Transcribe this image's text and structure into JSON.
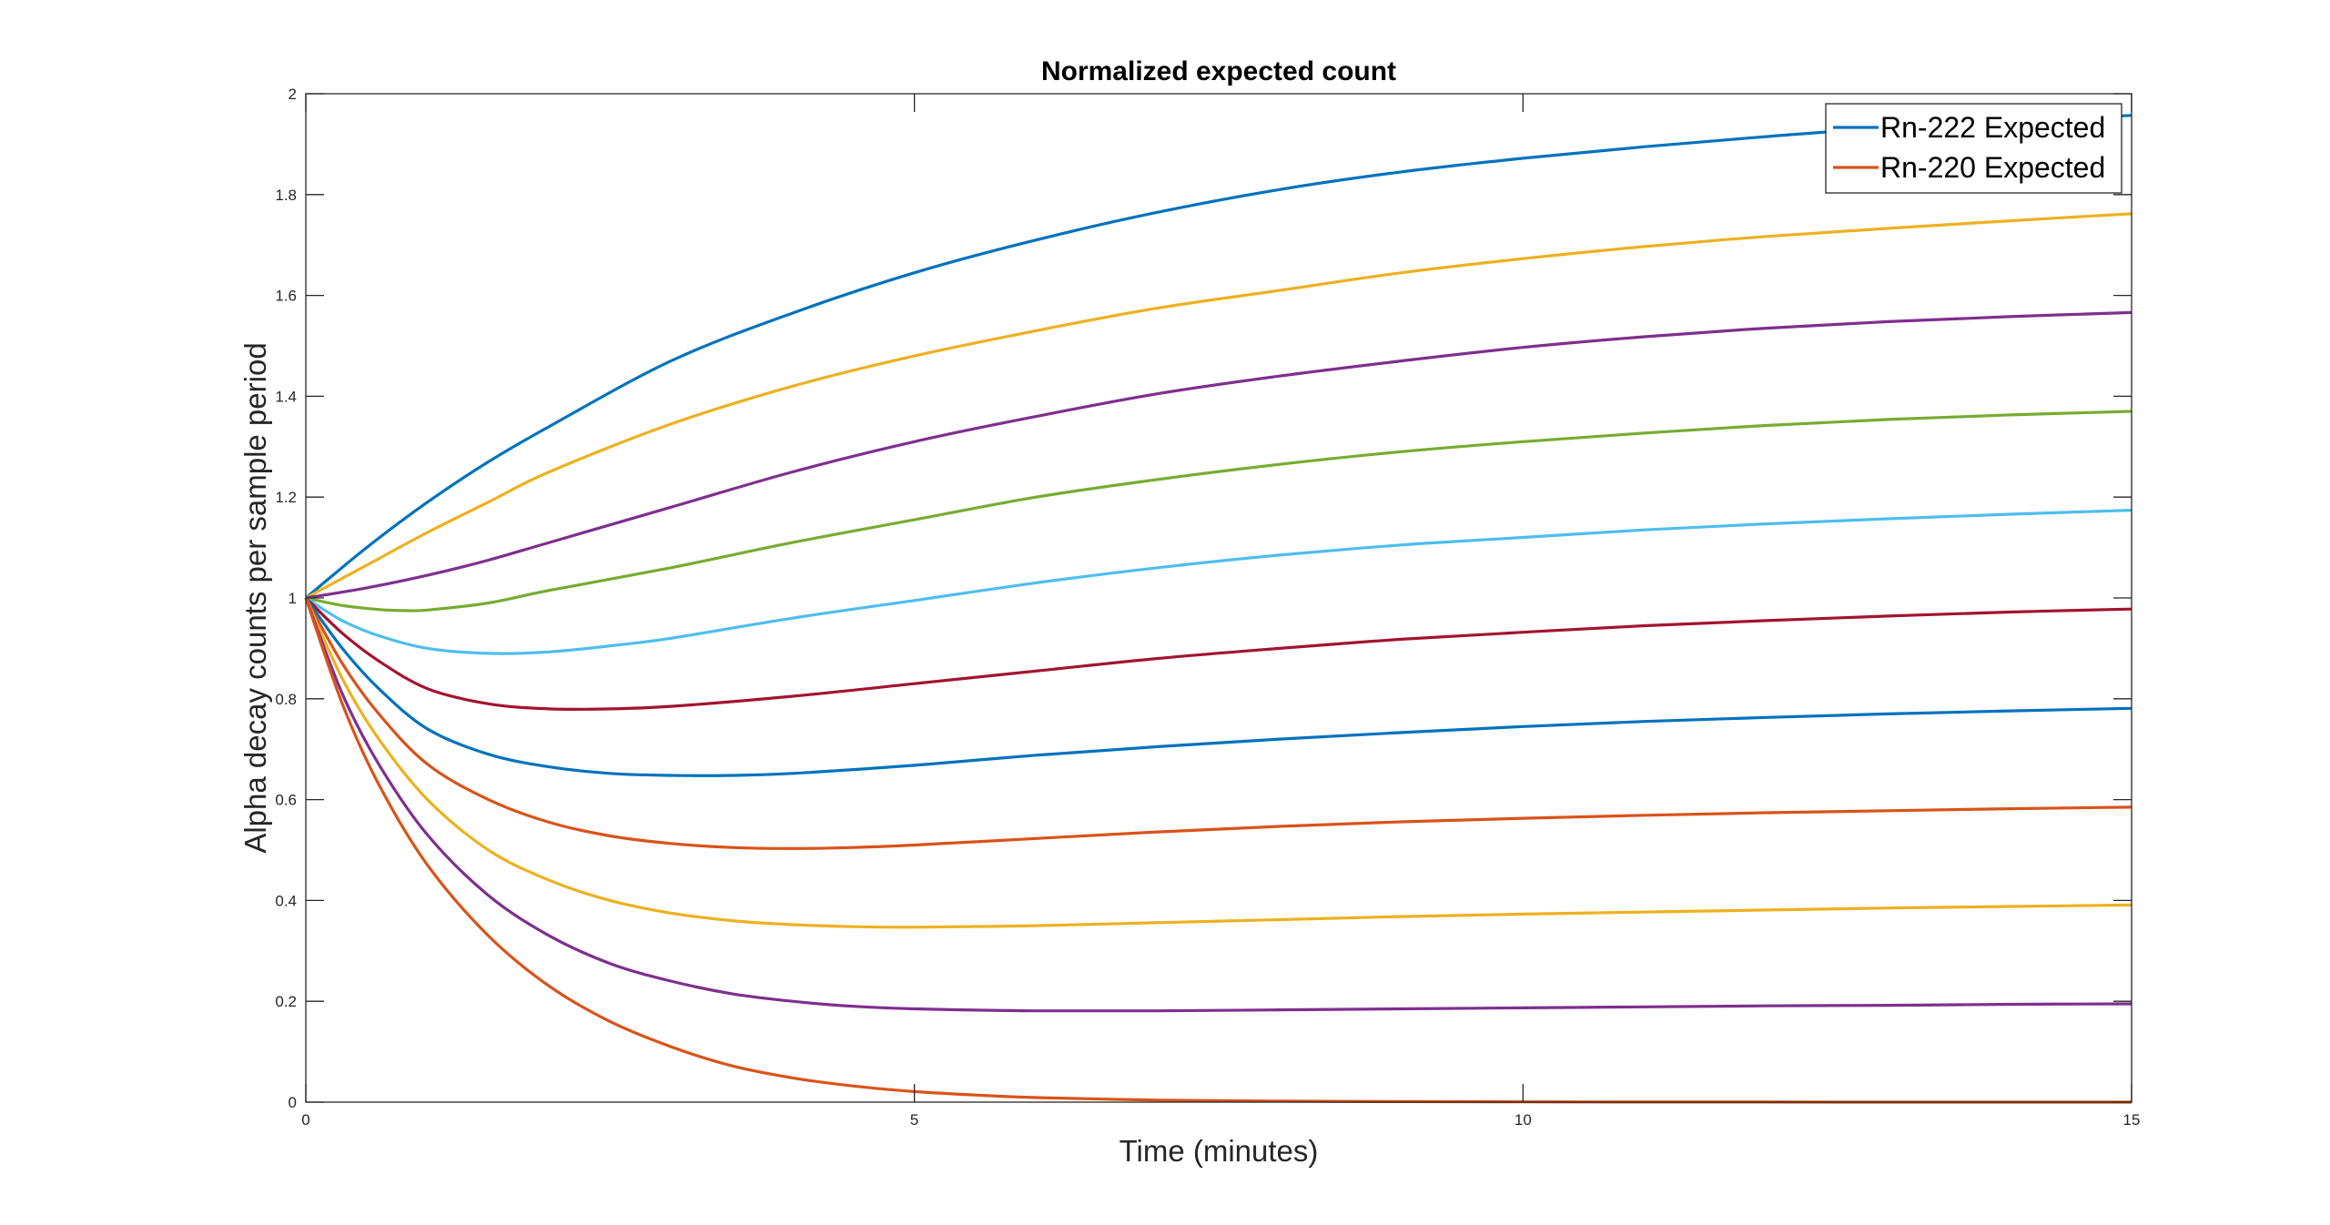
{
  "chart_data": {
    "type": "line",
    "title": "Normalized expected count",
    "xlabel": "Time (minutes)",
    "ylabel": "Alpha decay counts per sample period",
    "xlim": [
      0,
      15
    ],
    "ylim": [
      0,
      2
    ],
    "xticks": [
      "0",
      "5",
      "10",
      "15"
    ],
    "yticks": [
      "0",
      "0.2",
      "0.4",
      "0.6",
      "0.8",
      "1",
      "1.2",
      "1.4",
      "1.6",
      "1.8",
      "2"
    ],
    "grid": false,
    "legend_position": "top-right",
    "legend": [
      {
        "label": "Rn-222 Expected",
        "color": "#0072BD"
      },
      {
        "label": "Rn-220 Expected",
        "color": "#D95319"
      }
    ],
    "series": [
      {
        "color": "#0072BD",
        "x": [
          0,
          0.5,
          1,
          1.5,
          2,
          3,
          4,
          5,
          6,
          7,
          8,
          9,
          10,
          11,
          12,
          13,
          14,
          15
        ],
        "y": [
          1,
          1.1,
          1.19,
          1.27,
          1.34,
          1.47,
          1.565,
          1.645,
          1.71,
          1.765,
          1.81,
          1.845,
          1.872,
          1.895,
          1.915,
          1.933,
          1.946,
          1.957
        ]
      },
      {
        "color": "#EDB120",
        "x": [
          0,
          0.5,
          1,
          1.5,
          2,
          3,
          4,
          5,
          6,
          7,
          8,
          9,
          10,
          11,
          12,
          13,
          14,
          15
        ],
        "y": [
          1,
          1.065,
          1.13,
          1.19,
          1.25,
          1.345,
          1.42,
          1.48,
          1.53,
          1.575,
          1.61,
          1.645,
          1.673,
          1.697,
          1.717,
          1.733,
          1.748,
          1.762
        ]
      },
      {
        "color": "#7E2F8E",
        "x": [
          0,
          0.5,
          1,
          1.5,
          2,
          3,
          4,
          5,
          6,
          7,
          8,
          9,
          10,
          11,
          12,
          13,
          14,
          15
        ],
        "y": [
          1,
          1.02,
          1.045,
          1.075,
          1.11,
          1.18,
          1.25,
          1.31,
          1.36,
          1.405,
          1.44,
          1.47,
          1.497,
          1.518,
          1.535,
          1.548,
          1.558,
          1.566
        ]
      },
      {
        "color": "#77AC30",
        "x": [
          0,
          0.3,
          0.6,
          0.8,
          1,
          1.5,
          2,
          3,
          4,
          5,
          6,
          7,
          8,
          9,
          10,
          11,
          12,
          13,
          14,
          15
        ],
        "y": [
          1,
          0.985,
          0.977,
          0.975,
          0.976,
          0.99,
          1.015,
          1.06,
          1.11,
          1.155,
          1.2,
          1.235,
          1.265,
          1.29,
          1.31,
          1.327,
          1.342,
          1.354,
          1.363,
          1.37
        ]
      },
      {
        "color": "#4DBEEE",
        "x": [
          0,
          0.3,
          0.6,
          1,
          1.5,
          2,
          2.5,
          3,
          4,
          5,
          6,
          7,
          8,
          9,
          10,
          11,
          12,
          13,
          14,
          15
        ],
        "y": [
          1,
          0.955,
          0.925,
          0.9,
          0.89,
          0.893,
          0.905,
          0.92,
          0.96,
          0.995,
          1.03,
          1.06,
          1.085,
          1.105,
          1.12,
          1.135,
          1.147,
          1.157,
          1.166,
          1.174
        ]
      },
      {
        "color": "#A2142F",
        "x": [
          0,
          0.3,
          0.6,
          1,
          1.5,
          2,
          2.5,
          3,
          4,
          5,
          6,
          7,
          8,
          9,
          10,
          11,
          12,
          13,
          14,
          15
        ],
        "y": [
          1,
          0.93,
          0.875,
          0.82,
          0.79,
          0.78,
          0.78,
          0.785,
          0.805,
          0.83,
          0.855,
          0.88,
          0.9,
          0.918,
          0.932,
          0.945,
          0.955,
          0.964,
          0.972,
          0.978
        ]
      },
      {
        "color": "#0072BD",
        "x": [
          0,
          0.3,
          0.6,
          1,
          1.5,
          2,
          2.5,
          3,
          3.5,
          4,
          5,
          6,
          7,
          8,
          9,
          10,
          11,
          12,
          13,
          14,
          15
        ],
        "y": [
          1,
          0.9,
          0.82,
          0.74,
          0.69,
          0.665,
          0.652,
          0.648,
          0.648,
          0.652,
          0.668,
          0.688,
          0.705,
          0.72,
          0.733,
          0.745,
          0.755,
          0.763,
          0.77,
          0.776,
          0.781
        ]
      },
      {
        "color": "#D95319",
        "x": [
          0,
          0.3,
          0.6,
          1,
          1.5,
          2,
          2.5,
          3,
          3.5,
          4,
          4.5,
          5,
          6,
          7,
          8,
          9,
          10,
          11,
          12,
          13,
          14,
          15
        ],
        "y": [
          1,
          0.87,
          0.77,
          0.67,
          0.6,
          0.555,
          0.528,
          0.513,
          0.505,
          0.503,
          0.505,
          0.51,
          0.523,
          0.536,
          0.547,
          0.556,
          0.563,
          0.569,
          0.574,
          0.578,
          0.582,
          0.585
        ]
      },
      {
        "color": "#EDB120",
        "x": [
          0,
          0.3,
          0.6,
          1,
          1.5,
          2,
          2.5,
          3,
          3.5,
          4,
          4.5,
          5,
          6,
          7,
          8,
          9,
          10,
          11,
          12,
          13,
          14,
          15
        ],
        "y": [
          1,
          0.84,
          0.72,
          0.6,
          0.5,
          0.44,
          0.4,
          0.375,
          0.36,
          0.352,
          0.348,
          0.347,
          0.35,
          0.356,
          0.362,
          0.368,
          0.373,
          0.377,
          0.381,
          0.385,
          0.388,
          0.391
        ]
      },
      {
        "color": "#7E2F8E",
        "x": [
          0,
          0.3,
          0.6,
          1,
          1.5,
          2,
          2.5,
          3,
          3.5,
          4,
          4.5,
          5,
          6,
          7,
          8,
          9,
          10,
          11,
          12,
          13,
          14,
          15
        ],
        "y": [
          1,
          0.81,
          0.67,
          0.53,
          0.41,
          0.33,
          0.275,
          0.24,
          0.215,
          0.2,
          0.19,
          0.185,
          0.181,
          0.181,
          0.183,
          0.185,
          0.187,
          0.189,
          0.191,
          0.192,
          0.194,
          0.195
        ]
      },
      {
        "color": "#D95319",
        "x": [
          0,
          0.3,
          0.6,
          1,
          1.5,
          2,
          2.5,
          3,
          3.5,
          4,
          4.5,
          5,
          5.5,
          6,
          7,
          8,
          9,
          10,
          11,
          12,
          13,
          14,
          15
        ],
        "y": [
          1,
          0.79,
          0.63,
          0.47,
          0.33,
          0.23,
          0.16,
          0.11,
          0.072,
          0.048,
          0.032,
          0.021,
          0.014,
          0.009,
          0.004,
          0.002,
          0.001,
          0.0005,
          0.0002,
          0.0001,
          0,
          0,
          0
        ]
      }
    ]
  }
}
